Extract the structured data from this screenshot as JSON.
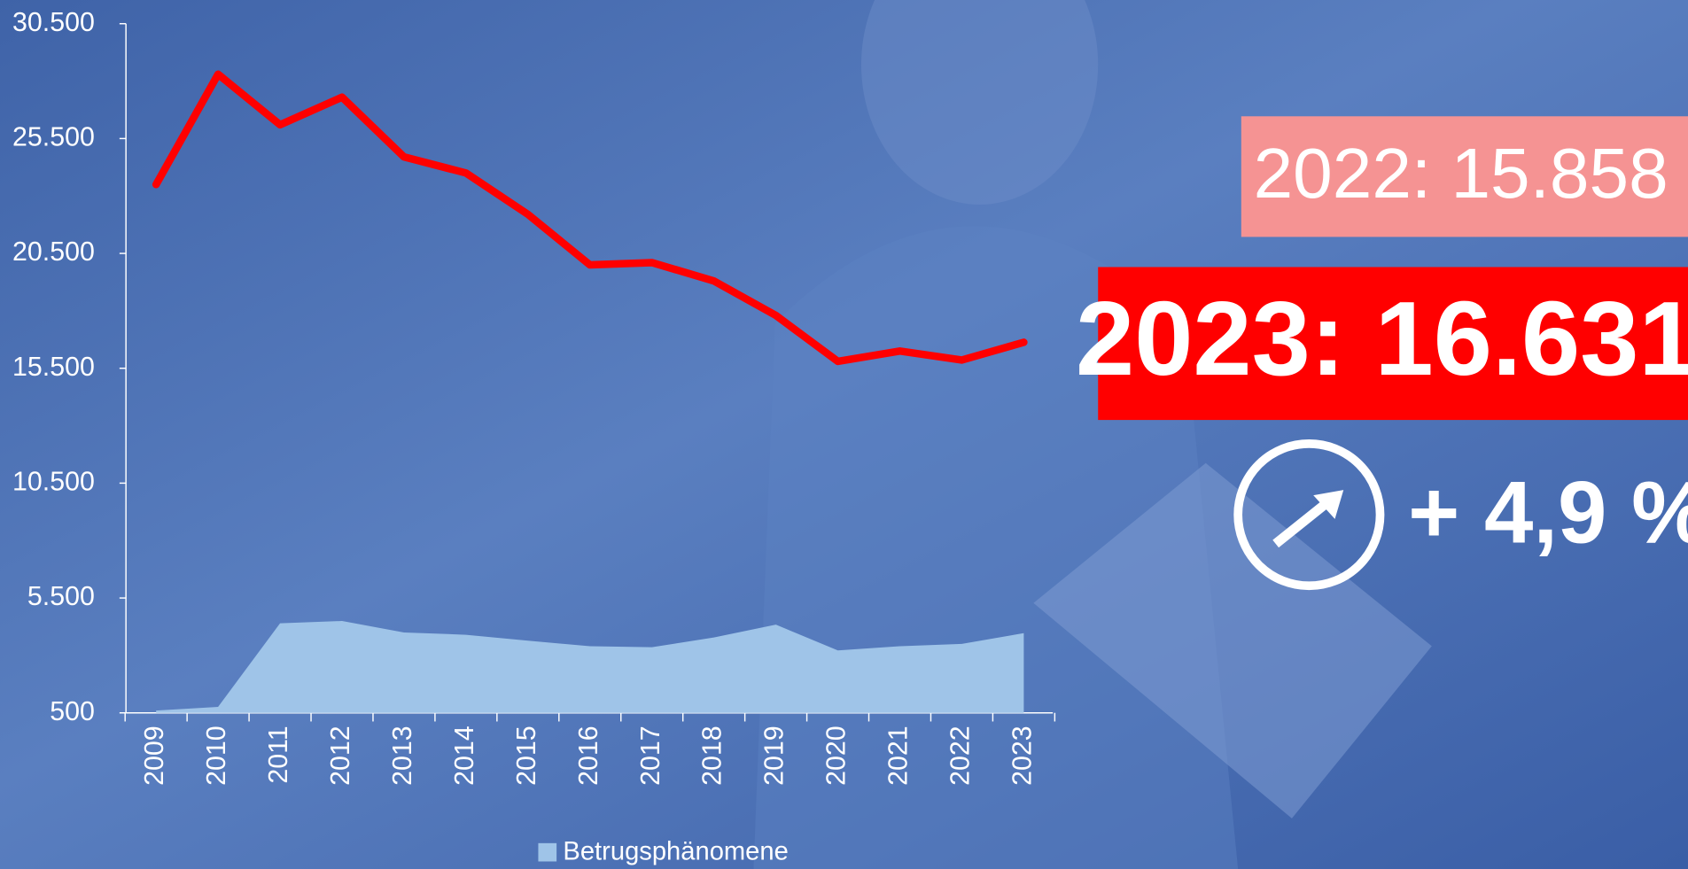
{
  "chart_data": {
    "type": "line",
    "categories": [
      "2009",
      "2010",
      "2011",
      "2012",
      "2013",
      "2014",
      "2015",
      "2016",
      "2017",
      "2018",
      "2019",
      "2020",
      "2021",
      "2022",
      "2023"
    ],
    "series": [
      {
        "name": "Betrugsphänomene",
        "color": "#9fc4e8",
        "fill": true,
        "values": [
          600,
          760,
          4400,
          4500,
          4000,
          3900,
          3640,
          3400,
          3360,
          3780,
          4340,
          3220,
          3400,
          3500,
          3970
        ]
      },
      {
        "color": "#ff0000",
        "fill": false,
        "values": [
          23500,
          28300,
          26100,
          27300,
          24700,
          24000,
          22200,
          20000,
          20100,
          19300,
          17800,
          15800,
          16250,
          15858,
          16631
        ]
      }
    ],
    "ylim": [
      500,
      30500
    ],
    "yticks": [
      {
        "value": 500,
        "label": "500"
      },
      {
        "value": 5500,
        "label": "5.500"
      },
      {
        "value": 10500,
        "label": "10.500"
      },
      {
        "value": 15500,
        "label": "15.500"
      },
      {
        "value": 20500,
        "label": "20.500"
      },
      {
        "value": 25500,
        "label": "25.500"
      },
      {
        "value": 30500,
        "label": "30.500"
      }
    ],
    "annotations": {
      "previous": "2022: 15.858",
      "current": "2023: 16.631",
      "change": "+ 4,9 %"
    },
    "legend": "bottom"
  }
}
